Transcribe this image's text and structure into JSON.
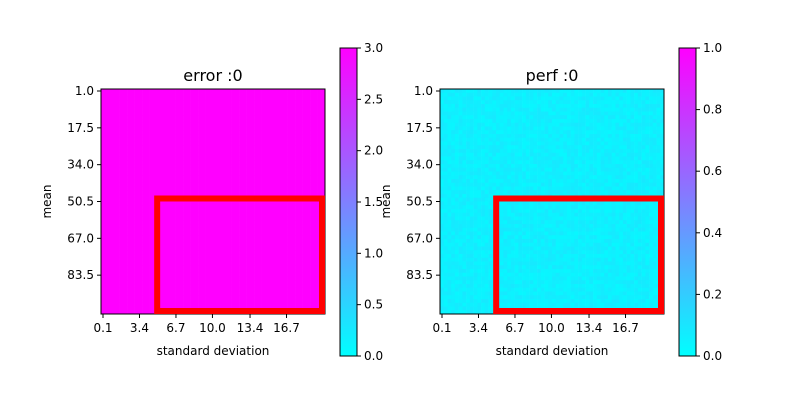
{
  "chart_data": [
    {
      "type": "heatmap",
      "title": "error :0",
      "xlabel": "standard deviation",
      "ylabel": "mean",
      "x_ticks": [
        "0.1",
        "3.4",
        "6.7",
        "10.0",
        "13.4",
        "16.7"
      ],
      "y_ticks": [
        "1.0",
        "17.5",
        "34.0",
        "50.5",
        "67.0",
        "83.5"
      ],
      "colorbar": {
        "min": 0.0,
        "max": 3.0,
        "ticks": [
          "0.0",
          "0.5",
          "1.0",
          "1.5",
          "2.0",
          "2.5",
          "3.0"
        ]
      },
      "colormap": [
        "#00ffff",
        "#ff00ff"
      ],
      "fill_value": 3.0,
      "noise": 0.0,
      "highlight": {
        "x_range": [
          5.0,
          20.0
        ],
        "y_range": [
          50.5,
          100.0
        ],
        "color": "#ff0000"
      }
    },
    {
      "type": "heatmap",
      "title": "perf :0",
      "xlabel": "standard deviation",
      "ylabel": "mean",
      "x_ticks": [
        "0.1",
        "3.4",
        "6.7",
        "10.0",
        "13.4",
        "16.7"
      ],
      "y_ticks": [
        "1.0",
        "17.5",
        "34.0",
        "50.5",
        "67.0",
        "83.5"
      ],
      "colorbar": {
        "min": 0.0,
        "max": 1.0,
        "ticks": [
          "0.0",
          "0.2",
          "0.4",
          "0.6",
          "0.8",
          "1.0"
        ]
      },
      "colormap": [
        "#00ffff",
        "#ff00ff"
      ],
      "fill_value": 0.06,
      "noise": 0.03,
      "highlight": {
        "x_range": [
          5.0,
          20.0
        ],
        "y_range": [
          50.5,
          100.0
        ],
        "color": "#ff0000"
      }
    }
  ]
}
